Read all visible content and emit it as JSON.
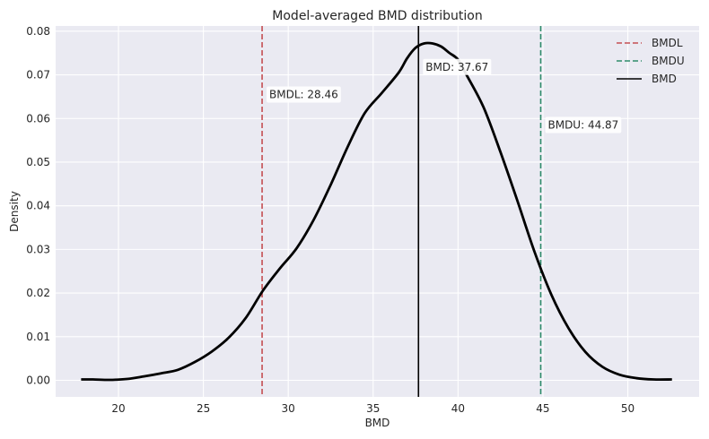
{
  "chart_data": {
    "type": "line",
    "title": "Model-averaged BMD distribution",
    "xlabel": "BMD",
    "ylabel": "Density",
    "xlim": [
      16.3,
      54.2
    ],
    "ylim": [
      -0.0038,
      0.0812
    ],
    "xticks": [
      20,
      25,
      30,
      35,
      40,
      45,
      50
    ],
    "yticks": [
      0.0,
      0.01,
      0.02,
      0.03,
      0.04,
      0.05,
      0.06,
      0.07,
      0.08
    ],
    "ytick_labels": [
      "0.00",
      "0.01",
      "0.02",
      "0.03",
      "0.04",
      "0.05",
      "0.06",
      "0.07",
      "0.08"
    ],
    "grid": true,
    "legend_position": "top-right",
    "background": "#eaeaf2",
    "series": [
      {
        "kind": "density",
        "color": "#000000",
        "x": [
          17.8,
          18.5,
          19.5,
          20.5,
          21.5,
          22.5,
          23.5,
          24.5,
          25.5,
          26.5,
          27.5,
          28.5,
          29.5,
          30.5,
          31.5,
          32.5,
          33.5,
          34.5,
          35.5,
          36.5,
          37.0,
          37.5,
          38.0,
          38.5,
          39.0,
          39.5,
          40.0,
          40.5,
          41.5,
          42.5,
          43.5,
          44.5,
          45.5,
          46.5,
          47.5,
          48.5,
          49.5,
          50.5,
          51.5,
          52.6
        ],
        "y": [
          0.0002,
          0.0002,
          0.0001,
          0.0003,
          0.0009,
          0.0016,
          0.0024,
          0.0042,
          0.0066,
          0.0098,
          0.0143,
          0.0205,
          0.0256,
          0.0303,
          0.0368,
          0.0448,
          0.0535,
          0.0612,
          0.0658,
          0.0705,
          0.0738,
          0.0762,
          0.0772,
          0.0772,
          0.0765,
          0.075,
          0.0735,
          0.07,
          0.0626,
          0.0523,
          0.0411,
          0.0295,
          0.0196,
          0.012,
          0.0065,
          0.0031,
          0.0013,
          0.0005,
          0.0002,
          0.0002
        ]
      }
    ],
    "vlines": [
      {
        "name": "BMDL",
        "x": 28.46,
        "color": "#c44e52",
        "style": "dashed",
        "annotation": "BMDL: 28.46",
        "annotation_y": 0.0655
      },
      {
        "name": "BMDU",
        "x": 44.87,
        "color": "#2e8b6a",
        "style": "dashed",
        "annotation": "BMDU: 44.87",
        "annotation_y": 0.0585
      },
      {
        "name": "BMD",
        "x": 37.67,
        "color": "#000000",
        "style": "solid",
        "annotation": "BMD: 37.67",
        "annotation_y": 0.0718
      }
    ],
    "legend": [
      "BMDL",
      "BMDU",
      "BMD"
    ]
  }
}
